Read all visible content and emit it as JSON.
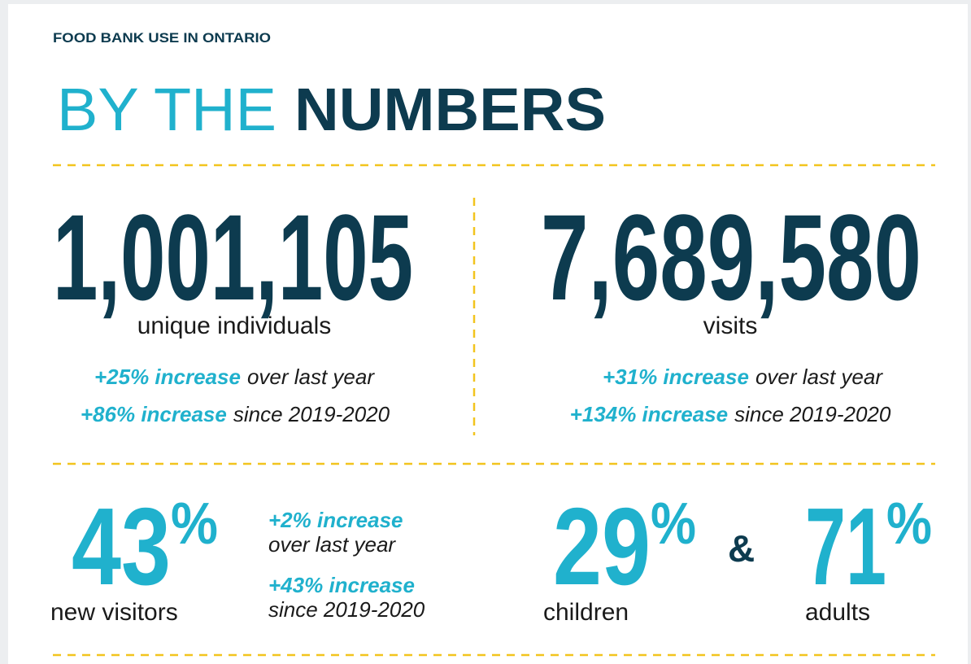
{
  "header": {
    "kicker": "FOOD BANK USE IN ONTARIO",
    "title_light": "BY THE",
    "title_bold": "NUMBERS"
  },
  "totals": [
    {
      "number": "1,001,105",
      "label": "unique individuals",
      "changes": [
        {
          "highlight": "+25% increase",
          "rest": "over last year"
        },
        {
          "highlight": "+86% increase",
          "rest": "since 2019-2020"
        }
      ]
    },
    {
      "number": "7,689,580",
      "label": "visits",
      "changes": [
        {
          "highlight": "+31% increase",
          "rest": "over last year"
        },
        {
          "highlight": "+134% increase",
          "rest": "since 2019-2020"
        }
      ]
    }
  ],
  "new_visitors": {
    "number": "43",
    "unit": "%",
    "label": "new visitors",
    "changes": [
      {
        "highlight": "+2% increase",
        "rest": "over last year"
      },
      {
        "highlight": "+43% increase",
        "rest": "since 2019-2020"
      }
    ]
  },
  "ages": {
    "children": {
      "number": "29",
      "unit": "%",
      "label": "children"
    },
    "joiner": "&",
    "adults": {
      "number": "71",
      "unit": "%",
      "label": "adults"
    }
  }
}
